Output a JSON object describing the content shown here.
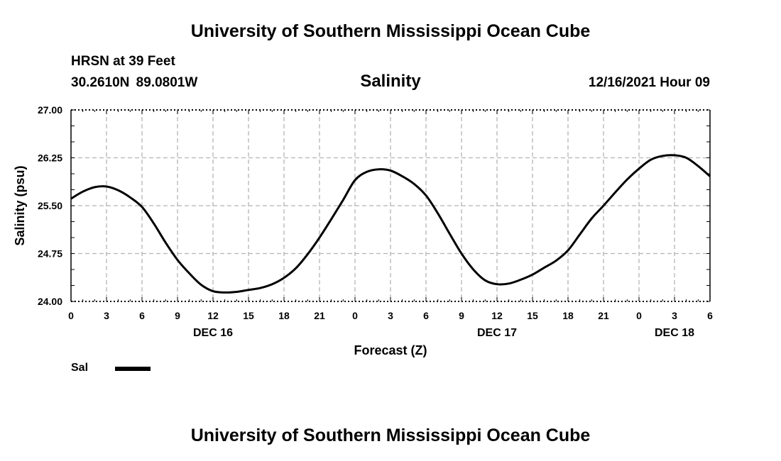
{
  "header": {
    "title": "University of Southern Mississippi Ocean Cube",
    "station": "HRSN at 39 Feet",
    "coordinates": "30.2610N  89.0801W",
    "chart_title": "Salinity",
    "datetime": "12/16/2021 Hour 09",
    "footer_title": "University of Southern Mississippi Ocean Cube"
  },
  "legend": {
    "label": "Sal",
    "color": "#000000"
  },
  "chart_data": {
    "type": "line",
    "title": "Salinity",
    "xlabel": "Forecast (Z)",
    "ylabel": "Salinity (psu)",
    "ylim": [
      24.0,
      27.0
    ],
    "xlim": [
      0,
      54
    ],
    "grid": true,
    "y_ticks": [
      "24.00",
      "24.75",
      "25.50",
      "26.25",
      "27.00"
    ],
    "x_ticks": [
      "0",
      "3",
      "6",
      "9",
      "12",
      "15",
      "18",
      "21",
      "0",
      "3",
      "6",
      "9",
      "12",
      "15",
      "18",
      "21",
      "0",
      "3",
      "6"
    ],
    "date_labels": [
      {
        "label": "DEC 16",
        "hour": 12
      },
      {
        "label": "DEC 17",
        "hour": 36
      },
      {
        "label": "DEC 18",
        "hour": 51
      }
    ],
    "series": [
      {
        "name": "Sal",
        "color": "#000000",
        "x": [
          0,
          1,
          2,
          3,
          4,
          5,
          6,
          7,
          8,
          9,
          10,
          11,
          12,
          13,
          14,
          15,
          16,
          17,
          18,
          19,
          20,
          21,
          22,
          23,
          24,
          25,
          26,
          27,
          28,
          29,
          30,
          31,
          32,
          33,
          34,
          35,
          36,
          37,
          38,
          39,
          40,
          41,
          42,
          43,
          44,
          45,
          46,
          47,
          48,
          49,
          50,
          51,
          52,
          53,
          54
        ],
        "y": [
          25.61,
          25.72,
          25.79,
          25.8,
          25.74,
          25.63,
          25.48,
          25.22,
          24.92,
          24.65,
          24.44,
          24.26,
          24.16,
          24.14,
          24.15,
          24.18,
          24.21,
          24.27,
          24.37,
          24.52,
          24.74,
          25.0,
          25.29,
          25.59,
          25.9,
          26.03,
          26.07,
          26.05,
          25.96,
          25.84,
          25.66,
          25.38,
          25.06,
          24.75,
          24.5,
          24.33,
          24.27,
          24.28,
          24.34,
          24.42,
          24.53,
          24.64,
          24.8,
          25.05,
          25.3,
          25.5,
          25.71,
          25.91,
          26.08,
          26.22,
          26.28,
          26.29,
          26.25,
          26.12,
          25.96
        ]
      }
    ]
  }
}
